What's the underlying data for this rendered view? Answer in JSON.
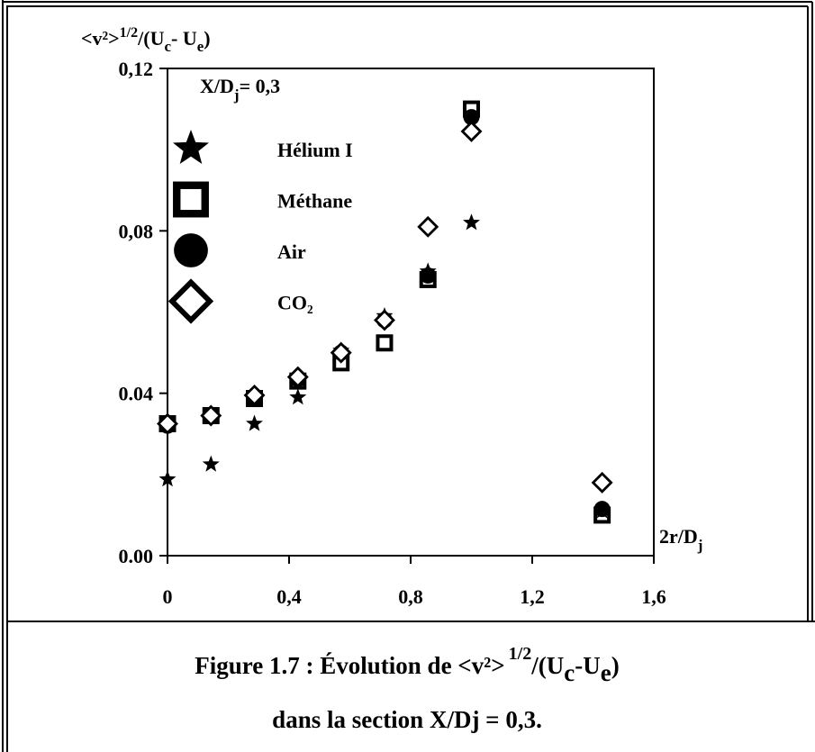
{
  "chart_data": {
    "type": "scatter",
    "ylabel": [
      "<v²>",
      "1/2",
      "/(U",
      "c",
      "- U",
      "e",
      ")"
    ],
    "xlabel": [
      "2r/D",
      "j"
    ],
    "annotation": [
      "X/D",
      "j",
      "= 0,3"
    ],
    "xlim": [
      0,
      1.6
    ],
    "ylim": [
      0,
      0.12
    ],
    "xticks": [
      {
        "value": 0,
        "label": "0"
      },
      {
        "value": 0.4,
        "label": "0,4"
      },
      {
        "value": 0.8,
        "label": "0,8"
      },
      {
        "value": 1.2,
        "label": "1,2"
      },
      {
        "value": 1.6,
        "label": "1,6"
      }
    ],
    "yticks": [
      {
        "value": 0,
        "label": "0.00"
      },
      {
        "value": 0.04,
        "label": "0.04"
      },
      {
        "value": 0.08,
        "label": "0,08"
      },
      {
        "value": 0.12,
        "label": "0,12"
      }
    ],
    "grid": false,
    "legend": "upper left",
    "series": [
      {
        "name": "Hélium I",
        "color": "#000000",
        "marker": "star",
        "x": [
          0,
          0.143,
          0.286,
          0.429,
          0.571,
          0.714,
          0.857,
          1.0,
          1.43
        ],
        "values": [
          0.0188,
          0.0225,
          0.0325,
          0.039,
          0.0505,
          0.059,
          0.07,
          0.082,
          0.011
        ]
      },
      {
        "name": "Méthane",
        "color": "#000000",
        "marker": "square",
        "x": [
          0,
          0.143,
          0.286,
          0.429,
          0.571,
          0.714,
          0.857,
          1.0,
          1.43
        ],
        "values": [
          0.0325,
          0.0345,
          0.0387,
          0.043,
          0.0475,
          0.0524,
          0.068,
          0.11,
          0.01
        ]
      },
      {
        "name": "Air",
        "color": "#000000",
        "marker": "circle",
        "x": [
          0,
          0.143,
          0.286,
          0.429,
          0.571,
          0.714,
          0.857,
          1.0,
          1.43
        ],
        "values": [
          0.032,
          0.0345,
          0.039,
          0.0435,
          0.05,
          0.058,
          0.069,
          0.108,
          0.0115
        ]
      },
      {
        "name": "CO₂",
        "color": "#000000",
        "marker": "diamond",
        "x": [
          0,
          0.143,
          0.286,
          0.429,
          0.571,
          0.714,
          0.857,
          1.0,
          1.43
        ],
        "values": [
          0.0325,
          0.0345,
          0.0395,
          0.044,
          0.05,
          0.058,
          0.081,
          0.1045,
          0.018
        ]
      }
    ]
  },
  "caption": {
    "line1": [
      "Figure 1.7 : Évolution de <v²>",
      "1/2",
      "/(U",
      "c",
      "-U",
      "e",
      ")"
    ],
    "line2": "dans la section X/Dj = 0,3."
  }
}
